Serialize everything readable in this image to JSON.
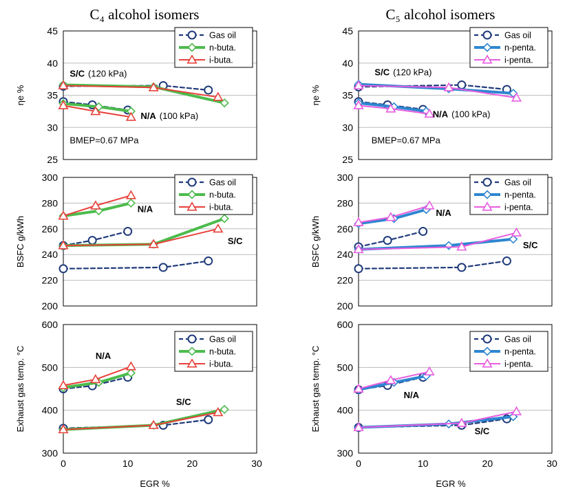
{
  "figure": {
    "column_titles": [
      "C₄ alcohol isomers",
      "C₅ alcohol isomers"
    ],
    "shared_xlabel": "EGR  %",
    "xticks": [
      0,
      10,
      20,
      30
    ]
  },
  "styles": {
    "Gas oil": {
      "color": "#1f3a7a",
      "dash": "6,4",
      "marker": "circle",
      "width": 2.2
    },
    "n-buta.": {
      "color": "#4cbb4c",
      "dash": "",
      "marker": "diamond",
      "width": 4
    },
    "i-buta.": {
      "color": "#e8403a",
      "dash": "",
      "marker": "triangle",
      "width": 2
    },
    "n-penta.": {
      "color": "#2e86d0",
      "dash": "",
      "marker": "diamond",
      "width": 4
    },
    "i-penta.": {
      "color": "#e85ce0",
      "dash": "",
      "marker": "triangle",
      "width": 2
    }
  },
  "chart_data": [
    {
      "type": "line",
      "title": "C₄ alcohol isomers",
      "ylabel": "ηe  %",
      "xlabel": "",
      "xlim": [
        0,
        30
      ],
      "ylim": [
        25,
        45
      ],
      "yticks": [
        25,
        30,
        35,
        40,
        45
      ],
      "legend": [
        "Gas oil",
        "n-buta.",
        "i-buta."
      ],
      "annotations": [
        {
          "text": "S/C",
          "sub": "(120 kPa)",
          "x": 1,
          "y": 37.9
        },
        {
          "text": "N/A",
          "sub": "(100 kPa)",
          "x": 12,
          "y": 31.3
        },
        {
          "text": "BMEP=0.67 MPa",
          "x": 1,
          "y": 27.5
        }
      ],
      "series": [
        {
          "name": "Gas oil",
          "x": [
            0,
            15.5,
            22.5
          ],
          "y": [
            36.4,
            36.5,
            35.8
          ]
        },
        {
          "name": "n-buta.",
          "x": [
            0,
            14,
            25
          ],
          "y": [
            36.6,
            36.3,
            33.8
          ]
        },
        {
          "name": "i-buta.",
          "x": [
            0,
            14,
            24
          ],
          "y": [
            36.5,
            36.2,
            34.7
          ]
        },
        {
          "name": "Gas oil",
          "x": [
            0,
            4.5,
            10
          ],
          "y": [
            34.0,
            33.5,
            32.7
          ]
        },
        {
          "name": "n-buta.",
          "x": [
            0,
            5.5,
            10.5
          ],
          "y": [
            33.7,
            33.2,
            32.5
          ]
        },
        {
          "name": "i-buta.",
          "x": [
            0,
            5,
            10.5
          ],
          "y": [
            33.4,
            32.5,
            31.6
          ]
        }
      ]
    },
    {
      "type": "line",
      "title": "C₅ alcohol isomers",
      "ylabel": "ηe  %",
      "xlabel": "",
      "xlim": [
        0,
        30
      ],
      "ylim": [
        25,
        45
      ],
      "yticks": [
        25,
        30,
        35,
        40,
        45
      ],
      "legend": [
        "Gas oil",
        "n-penta.",
        "i-penta."
      ],
      "annotations": [
        {
          "text": "S/C",
          "sub": "(120 kPa)",
          "x": 2.5,
          "y": 38.1
        },
        {
          "text": "N/A",
          "sub": "(100 kPa)",
          "x": 11.5,
          "y": 31.6
        },
        {
          "text": "BMEP=0.67 MPa",
          "x": 2,
          "y": 27.5
        }
      ],
      "series": [
        {
          "name": "Gas oil",
          "x": [
            0,
            16,
            23
          ],
          "y": [
            36.3,
            36.6,
            35.9
          ]
        },
        {
          "name": "n-penta.",
          "x": [
            0,
            14,
            24
          ],
          "y": [
            36.7,
            36.0,
            35.3
          ]
        },
        {
          "name": "i-penta.",
          "x": [
            0,
            14,
            24.5
          ],
          "y": [
            36.5,
            36.2,
            34.6
          ]
        },
        {
          "name": "Gas oil",
          "x": [
            0,
            4.5,
            10
          ],
          "y": [
            34.0,
            33.5,
            32.8
          ]
        },
        {
          "name": "n-penta.",
          "x": [
            0,
            5.5,
            10.5
          ],
          "y": [
            33.8,
            33.2,
            32.5
          ]
        },
        {
          "name": "i-penta.",
          "x": [
            0,
            5,
            11
          ],
          "y": [
            33.4,
            32.9,
            32.1
          ]
        }
      ]
    },
    {
      "type": "line",
      "title": "",
      "ylabel": "BSFC  g/kWh",
      "xlabel": "",
      "xlim": [
        0,
        30
      ],
      "ylim": [
        200,
        300
      ],
      "yticks": [
        200,
        220,
        240,
        260,
        280,
        300
      ],
      "legend": [
        "Gas oil",
        "n-buta.",
        "i-buta."
      ],
      "annotations": [
        {
          "text": "N/A",
          "x": 11.5,
          "y": 273
        },
        {
          "text": "S/C",
          "x": 25.5,
          "y": 248
        }
      ],
      "series": [
        {
          "name": "Gas oil",
          "x": [
            0,
            4.5,
            10
          ],
          "y": [
            247,
            251,
            258
          ]
        },
        {
          "name": "Gas oil",
          "x": [
            0,
            15.5,
            22.5
          ],
          "y": [
            229,
            230,
            235
          ]
        },
        {
          "name": "n-buta.",
          "x": [
            0,
            5.5,
            10.5
          ],
          "y": [
            270,
            274,
            280
          ]
        },
        {
          "name": "n-buta.",
          "x": [
            0,
            14,
            25
          ],
          "y": [
            247,
            248,
            268
          ]
        },
        {
          "name": "i-buta.",
          "x": [
            0,
            5,
            10.5
          ],
          "y": [
            270,
            278,
            286
          ]
        },
        {
          "name": "i-buta.",
          "x": [
            0,
            14,
            24
          ],
          "y": [
            247,
            248,
            260
          ]
        }
      ]
    },
    {
      "type": "line",
      "title": "",
      "ylabel": "BSFC  g/kWh",
      "xlabel": "",
      "xlim": [
        0,
        30
      ],
      "ylim": [
        200,
        300
      ],
      "yticks": [
        200,
        220,
        240,
        260,
        280,
        300
      ],
      "legend": [
        "Gas oil",
        "n-penta.",
        "i-penta."
      ],
      "annotations": [
        {
          "text": "N/A",
          "x": 12,
          "y": 270
        },
        {
          "text": "S/C",
          "x": 25.5,
          "y": 245
        }
      ],
      "series": [
        {
          "name": "Gas oil",
          "x": [
            0,
            4.5,
            10
          ],
          "y": [
            246,
            251,
            258
          ]
        },
        {
          "name": "Gas oil",
          "x": [
            0,
            16,
            23
          ],
          "y": [
            229,
            230,
            235
          ]
        },
        {
          "name": "n-penta.",
          "x": [
            0,
            5.5,
            10.5
          ],
          "y": [
            264,
            268,
            275
          ]
        },
        {
          "name": "n-penta.",
          "x": [
            0,
            14,
            24
          ],
          "y": [
            244,
            247,
            252
          ]
        },
        {
          "name": "i-penta.",
          "x": [
            0,
            5,
            11
          ],
          "y": [
            265,
            269,
            278
          ]
        },
        {
          "name": "i-penta.",
          "x": [
            0,
            16,
            24.5
          ],
          "y": [
            244,
            246,
            257
          ]
        }
      ]
    },
    {
      "type": "line",
      "title": "",
      "ylabel": "Exhaust gas temp.  °C",
      "xlabel": "",
      "xlim": [
        0,
        30
      ],
      "ylim": [
        300,
        600
      ],
      "yticks": [
        300,
        400,
        500,
        600
      ],
      "legend": [
        "Gas oil",
        "n-buta.",
        "i-buta."
      ],
      "annotations": [
        {
          "text": "N/A",
          "x": 5,
          "y": 520
        },
        {
          "text": "S/C",
          "x": 17.5,
          "y": 412
        }
      ],
      "series": [
        {
          "name": "Gas oil",
          "x": [
            0,
            4.5,
            10
          ],
          "y": [
            450,
            457,
            477
          ]
        },
        {
          "name": "Gas oil",
          "x": [
            0,
            15.5,
            22.5
          ],
          "y": [
            358,
            365,
            378
          ]
        },
        {
          "name": "n-buta.",
          "x": [
            0,
            5.5,
            10.5
          ],
          "y": [
            453,
            465,
            487
          ]
        },
        {
          "name": "n-buta.",
          "x": [
            0,
            14,
            25
          ],
          "y": [
            355,
            365,
            402
          ]
        },
        {
          "name": "i-buta.",
          "x": [
            0,
            5,
            10.5
          ],
          "y": [
            458,
            472,
            502
          ]
        },
        {
          "name": "i-buta.",
          "x": [
            0,
            14,
            24
          ],
          "y": [
            355,
            365,
            395
          ]
        }
      ]
    },
    {
      "type": "line",
      "title": "",
      "ylabel": "Exhaust gas temp.  °C",
      "xlabel": "",
      "xlim": [
        0,
        30
      ],
      "ylim": [
        300,
        600
      ],
      "yticks": [
        300,
        400,
        500,
        600
      ],
      "legend": [
        "Gas oil",
        "n-penta.",
        "i-penta."
      ],
      "annotations": [
        {
          "text": "N/A",
          "x": 7,
          "y": 428
        },
        {
          "text": "S/C",
          "x": 18,
          "y": 344
        }
      ],
      "series": [
        {
          "name": "Gas oil",
          "x": [
            0,
            4.5,
            10
          ],
          "y": [
            448,
            458,
            477
          ]
        },
        {
          "name": "Gas oil",
          "x": [
            0,
            16,
            23
          ],
          "y": [
            360,
            365,
            380
          ]
        },
        {
          "name": "n-penta.",
          "x": [
            0,
            5.5,
            10.5
          ],
          "y": [
            448,
            465,
            480
          ]
        },
        {
          "name": "n-penta.",
          "x": [
            0,
            14,
            24
          ],
          "y": [
            360,
            368,
            385
          ]
        },
        {
          "name": "i-penta.",
          "x": [
            0,
            5,
            11
          ],
          "y": [
            450,
            470,
            490
          ]
        },
        {
          "name": "i-penta.",
          "x": [
            0,
            16,
            24.5
          ],
          "y": [
            360,
            370,
            397
          ]
        }
      ]
    }
  ]
}
